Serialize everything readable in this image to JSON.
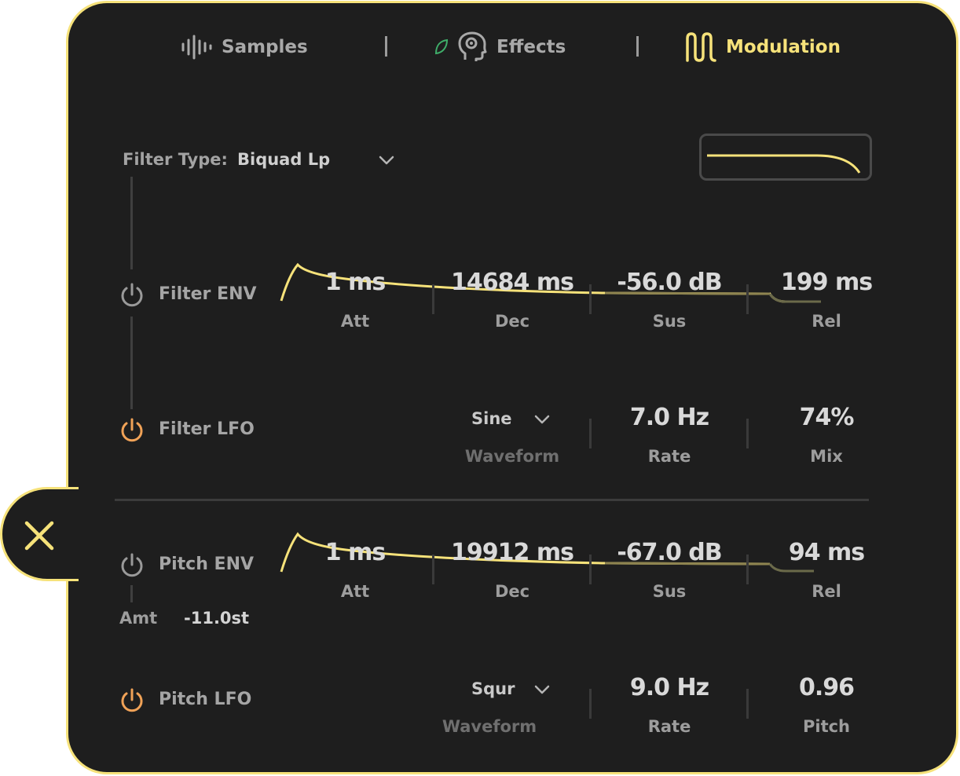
{
  "tabs": [
    {
      "label": "Samples",
      "icon": "waveform-icon",
      "active": false
    },
    {
      "label": "Effects",
      "icon": "head-gear-icon",
      "active": false
    },
    {
      "label": "Modulation",
      "icon": "modulation-wave-icon",
      "active": true
    }
  ],
  "filter": {
    "type_label": "Filter Type:",
    "type_value": "Biquad Lp"
  },
  "filter_env": {
    "label": "Filter ENV",
    "enabled": false,
    "att": {
      "value": "1 ms",
      "label": "Att"
    },
    "dec": {
      "value": "14684 ms",
      "label": "Dec"
    },
    "sus": {
      "value": "-56.0 dB",
      "label": "Sus"
    },
    "rel": {
      "value": "199 ms",
      "label": "Rel"
    }
  },
  "filter_lfo": {
    "label": "Filter LFO",
    "enabled": true,
    "waveform": {
      "value": "Sine",
      "label": "Waveform"
    },
    "rate": {
      "value": "7.0 Hz",
      "label": "Rate"
    },
    "mix": {
      "value": "74%",
      "label": "Mix"
    }
  },
  "pitch_env": {
    "label": "Pitch ENV",
    "enabled": false,
    "amt_label": "Amt",
    "amt_value": "-11.0st",
    "att": {
      "value": "1 ms",
      "label": "Att"
    },
    "dec": {
      "value": "19912 ms",
      "label": "Dec"
    },
    "sus": {
      "value": "-67.0 dB",
      "label": "Sus"
    },
    "rel": {
      "value": "94 ms",
      "label": "Rel"
    }
  },
  "pitch_lfo": {
    "label": "Pitch LFO",
    "enabled": true,
    "waveform": {
      "value": "Squr",
      "label": "Waveform"
    },
    "rate": {
      "value": "9.0 Hz",
      "label": "Rate"
    },
    "pitch": {
      "value": "0.96",
      "label": "Pitch"
    }
  },
  "colors": {
    "accent": "#f6e27a",
    "power_on": "#f0a257",
    "power_off": "#9a9a9a",
    "leaf": "#3fae6a",
    "panel_bg": "#1e1e1e"
  }
}
